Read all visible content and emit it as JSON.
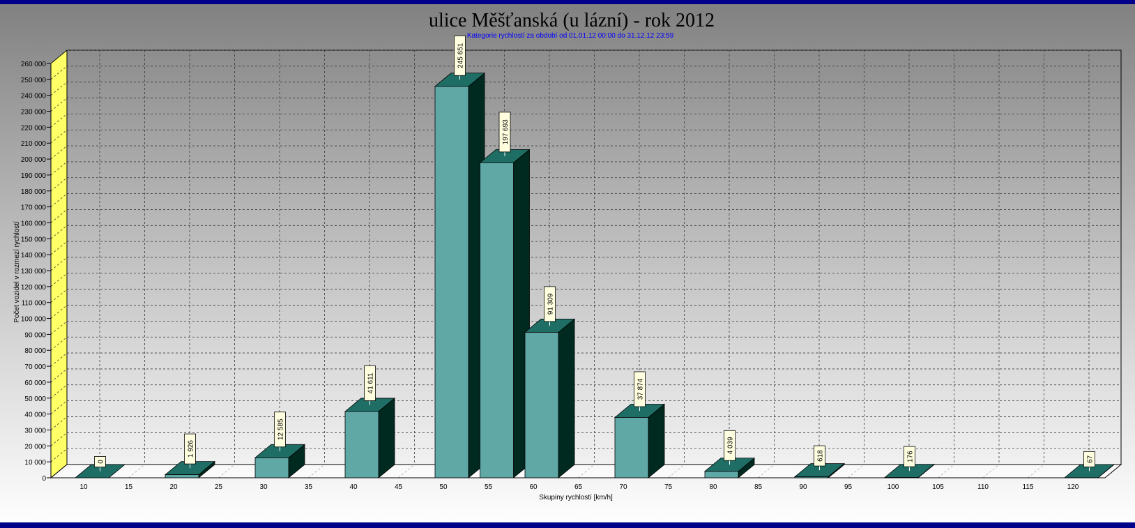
{
  "chart_data": {
    "type": "bar",
    "title": "ulice Měšťanská (u lázní) - rok 2012",
    "subtitle": "Kategorie rychlostí za období od 01.01.12 00:00 do 31.12.12 23:59",
    "xlabel": "Skupiny rychlostí [km/h]",
    "ylabel": "Počet vozidel v rozmezí rychlostí",
    "x_ticks": [
      "10",
      "15",
      "20",
      "25",
      "30",
      "35",
      "40",
      "45",
      "50",
      "55",
      "60",
      "65",
      "70",
      "75",
      "80",
      "85",
      "90",
      "95",
      "100",
      "105",
      "110",
      "115",
      "120"
    ],
    "categories": [
      "10",
      "20",
      "30",
      "40",
      "50",
      "55",
      "60",
      "70",
      "80",
      "90",
      "100",
      "120"
    ],
    "values": [
      0,
      1926,
      12585,
      41611,
      245651,
      197693,
      91309,
      37874,
      4039,
      618,
      176,
      67
    ],
    "data_labels": [
      "0",
      "1 926",
      "12 585",
      "41 611",
      "245 651",
      "197 693",
      "91 309",
      "37 874",
      "4 039",
      "618",
      "176",
      "67"
    ],
    "y_ticks": [
      "0",
      "10 000",
      "20 000",
      "30 000",
      "40 000",
      "50 000",
      "60 000",
      "70 000",
      "80 000",
      "90 000",
      "100 000",
      "110 000",
      "120 000",
      "130 000",
      "140 000",
      "150 000",
      "160 000",
      "170 000",
      "180 000",
      "190 000",
      "200 000",
      "210 000",
      "220 000",
      "230 000",
      "240 000",
      "250 000",
      "260 000"
    ],
    "ylim": [
      0,
      260000
    ],
    "grid": true,
    "legend": "none",
    "colors": {
      "bar_front": "#5fa8a6",
      "bar_top": "#1f6e66",
      "bar_side": "#00291f",
      "left_wall": "#ffff66",
      "label_bg": "#ffffe0",
      "frame": "#00008b"
    }
  }
}
